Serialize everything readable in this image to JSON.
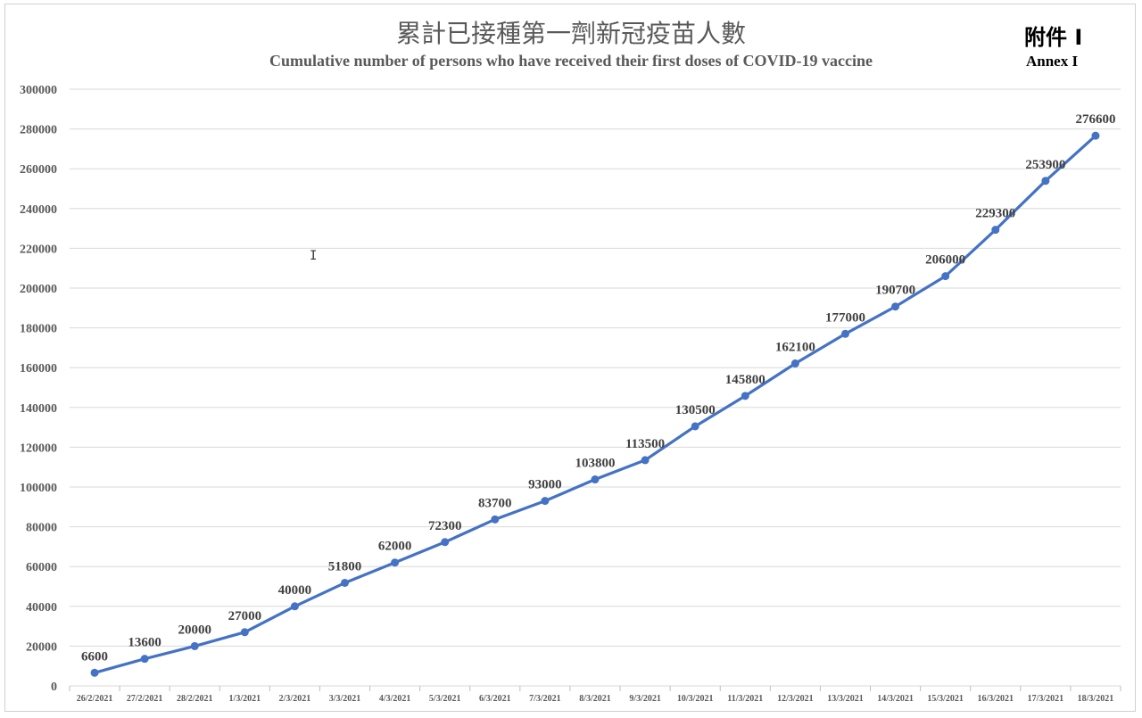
{
  "header": {
    "title_zh": "累計已接種第一劑新冠疫苗人數",
    "title_en": "Cumulative number of persons who have received their first doses of COVID-19 vaccine",
    "annex_zh": "附件 I",
    "annex_en": "Annex I"
  },
  "chart_data": {
    "type": "line",
    "title": "累計已接種第一劑新冠疫苗人數",
    "subtitle": "Cumulative number of persons who have received their first doses of COVID-19 vaccine",
    "xlabel": "",
    "ylabel": "",
    "ylim": [
      0,
      300000
    ],
    "yticks": [
      0,
      20000,
      40000,
      60000,
      80000,
      100000,
      120000,
      140000,
      160000,
      180000,
      200000,
      220000,
      240000,
      260000,
      280000,
      300000
    ],
    "grid": true,
    "legend": "none",
    "line_color": "#4472c4",
    "categories": [
      "26/2/2021",
      "27/2/2021",
      "28/2/2021",
      "1/3/2021",
      "2/3/2021",
      "3/3/2021",
      "4/3/2021",
      "5/3/2021",
      "6/3/2021",
      "7/3/2021",
      "8/3/2021",
      "9/3/2021",
      "10/3/2021",
      "11/3/2021",
      "12/3/2021",
      "13/3/2021",
      "14/3/2021",
      "15/3/2021",
      "16/3/2021",
      "17/3/2021",
      "18/3/2021"
    ],
    "values": [
      6600,
      13600,
      20000,
      27000,
      40000,
      51800,
      62000,
      72300,
      83700,
      93000,
      103800,
      113500,
      130500,
      145800,
      162100,
      177000,
      190700,
      206000,
      229300,
      253900,
      276600
    ]
  }
}
